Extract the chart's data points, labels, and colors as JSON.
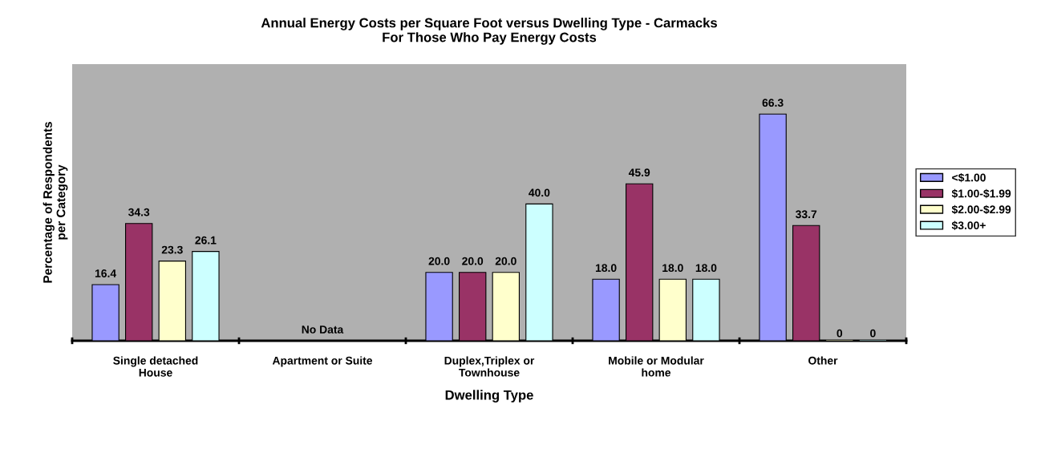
{
  "chart_data": {
    "type": "bar",
    "title": "Annual Energy Costs per Square Foot versus Dwelling Type - Carmacks\nFor Those Who Pay Energy Costs",
    "xlabel": "Dwelling Type",
    "ylabel": "Percentage of Respondents\nper Category",
    "categories": [
      "Single detached\nHouse",
      "Apartment or Suite",
      "Duplex,Triplex or\nTownhouse",
      "Mobile or Modular\nhome",
      "Other"
    ],
    "series": [
      {
        "name": "<$1.00",
        "color": "#9999ff",
        "values": [
          16.4,
          null,
          20.0,
          18.0,
          66.3
        ],
        "value_labels": [
          "16.4",
          null,
          "20.0",
          "18.0",
          "66.3"
        ]
      },
      {
        "name": "$1.00-$1.99",
        "color": "#993366",
        "values": [
          34.3,
          null,
          20.0,
          45.9,
          33.7
        ],
        "value_labels": [
          "34.3",
          null,
          "20.0",
          "45.9",
          "33.7"
        ]
      },
      {
        "name": "$2.00-$2.99",
        "color": "#ffffcc",
        "values": [
          23.3,
          null,
          20.0,
          18.0,
          0
        ],
        "value_labels": [
          "23.3",
          null,
          "20.0",
          "18.0",
          "0"
        ]
      },
      {
        "name": "$3.00+",
        "color": "#ccffff",
        "values": [
          26.1,
          null,
          40.0,
          18.0,
          0
        ],
        "value_labels": [
          "26.1",
          null,
          "40.0",
          "18.0",
          "0"
        ]
      }
    ],
    "annotations": [
      "No Data"
    ],
    "legend": "right"
  }
}
